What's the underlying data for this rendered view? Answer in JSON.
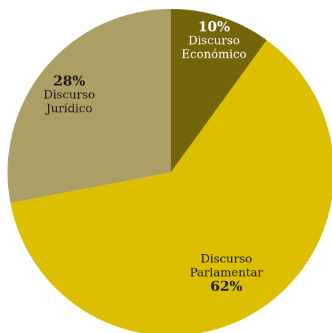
{
  "chart_data": {
    "type": "pie",
    "slices": [
      {
        "label_lines": [
          "Discurso",
          "Económico"
        ],
        "value": 10,
        "pct_text": "10%",
        "color": "#75650a",
        "text_color": "#ffffff",
        "pct_first": true
      },
      {
        "label_lines": [
          "Discurso",
          "Parlamentar"
        ],
        "value": 62,
        "pct_text": "62%",
        "color": "#dcbf00",
        "text_color": "#1a1a1a",
        "pct_first": false
      },
      {
        "label_lines": [
          "Discurso",
          "Jurídico"
        ],
        "value": 28,
        "pct_text": "28%",
        "color": "#ac9f66",
        "text_color": "#1a1a1a",
        "pct_first": true
      }
    ],
    "start_angle_deg": 0,
    "direction": "clockwise"
  }
}
